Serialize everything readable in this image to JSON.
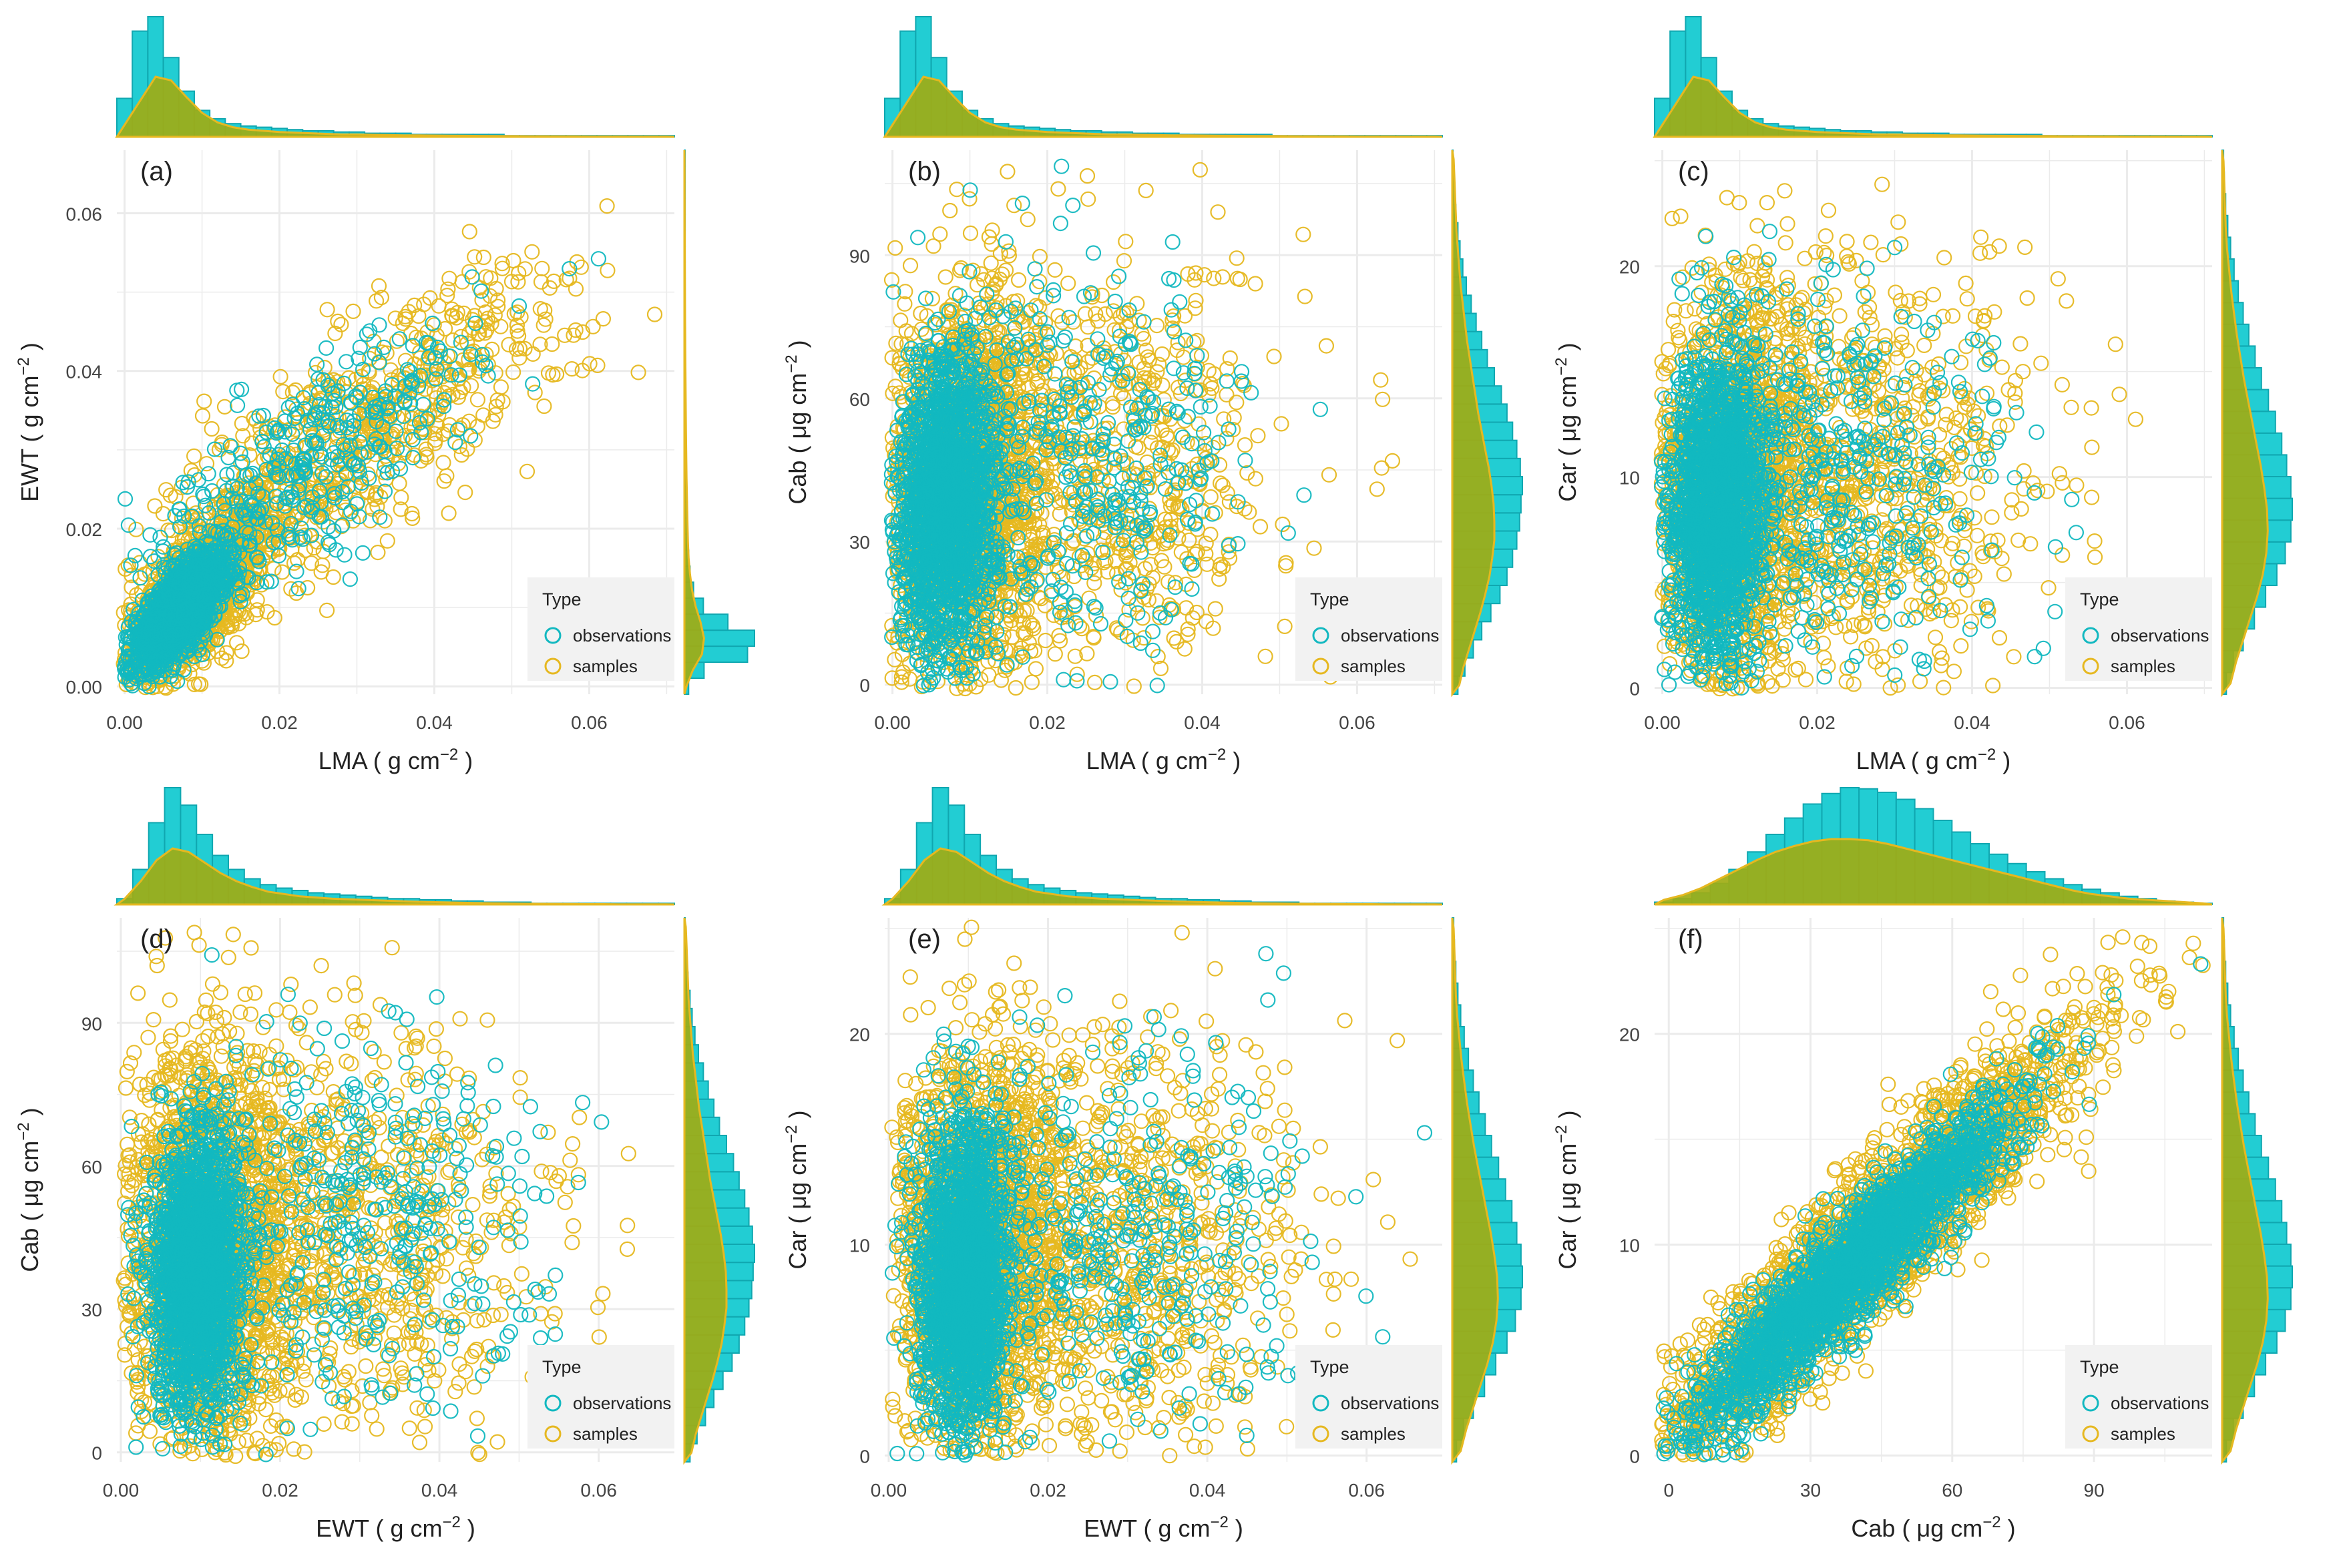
{
  "colors": {
    "observations": "#12b8c0",
    "samples": "#e6b820",
    "hist_obs_fill": "#22cdd3",
    "hist_obs_stroke": "#10a7b0",
    "density_fill": "#a0ad14",
    "density_line": "#e6b820",
    "panel_bg": "#ffffff",
    "grid": "#ebebeb",
    "legend_bg": "#f2f2f2",
    "text": "#222222",
    "axis_text": "#444444"
  },
  "legend": {
    "title": "Type",
    "items": [
      "observations",
      "samples"
    ]
  },
  "chart_data": [
    {
      "panel": "(a)",
      "type": "scatter",
      "xlabel": "LMA",
      "ylabel": "EWT",
      "xunit": "g cm",
      "yunit": "g cm",
      "exp": "−2",
      "xlim": [
        -0.001,
        0.071
      ],
      "ylim": [
        -0.001,
        0.068
      ],
      "xticks": [
        0.0,
        0.02,
        0.04,
        0.06
      ],
      "xtick_labels": [
        "0.00",
        "0.02",
        "0.04",
        "0.06"
      ],
      "yticks": [
        0.0,
        0.02,
        0.04,
        0.06
      ],
      "ytick_labels": [
        "0.00",
        "0.02",
        "0.04",
        "0.06"
      ],
      "clusters": [
        {
          "series": "samples",
          "n": 1300,
          "mx": 0.009,
          "my": 0.011,
          "sx": 0.0045,
          "sy": 0.0055,
          "rho": 0.7
        },
        {
          "series": "samples",
          "n": 700,
          "mx": 0.025,
          "my": 0.028,
          "sx": 0.013,
          "sy": 0.011,
          "rho": 0.8
        },
        {
          "series": "samples",
          "n": 100,
          "mx": 0.045,
          "my": 0.042,
          "sx": 0.012,
          "sy": 0.008,
          "rho": 0.6
        },
        {
          "series": "observations",
          "n": 1700,
          "mx": 0.007,
          "my": 0.0095,
          "sx": 0.003,
          "sy": 0.0035,
          "rho": 0.75
        },
        {
          "series": "observations",
          "n": 400,
          "mx": 0.022,
          "my": 0.026,
          "sx": 0.012,
          "sy": 0.01,
          "rho": 0.8
        }
      ],
      "top_hist": [
        0.32,
        0.88,
        1.0,
        0.66,
        0.38,
        0.22,
        0.15,
        0.11,
        0.09,
        0.08,
        0.07,
        0.06,
        0.05,
        0.05,
        0.04,
        0.04,
        0.03,
        0.03,
        0.03,
        0.02,
        0.02,
        0.02,
        0.02,
        0.02,
        0.02,
        0.01,
        0.01,
        0.01,
        0.01,
        0.01,
        0.01,
        0.01,
        0.01,
        0.01,
        0.01,
        0.01
      ],
      "top_density": [
        0.1,
        0.3,
        0.5,
        0.47,
        0.33,
        0.2,
        0.12,
        0.08,
        0.06,
        0.05,
        0.04,
        0.035,
        0.03,
        0.025,
        0.02,
        0.02,
        0.017,
        0.015,
        0.013,
        0.012,
        0.011,
        0.01,
        0.009,
        0.008,
        0.007,
        0.006,
        0.005,
        0.005,
        0.004,
        0.004,
        0.003,
        0.003,
        0.003,
        0.002,
        0.002,
        0.002
      ],
      "right_hist": [
        0.06,
        0.28,
        0.9,
        1.0,
        0.62,
        0.27,
        0.13,
        0.08,
        0.06,
        0.05,
        0.04,
        0.04,
        0.03,
        0.03,
        0.02,
        0.02,
        0.02,
        0.02,
        0.01,
        0.01,
        0.01,
        0.01,
        0.01,
        0.01,
        0.01,
        0.01,
        0.01,
        0.01,
        0.01,
        0.01,
        0.01,
        0.01,
        0.01,
        0.01
      ],
      "right_density": [
        0.03,
        0.12,
        0.25,
        0.28,
        0.23,
        0.16,
        0.11,
        0.08,
        0.06,
        0.05,
        0.045,
        0.04,
        0.035,
        0.03,
        0.028,
        0.025,
        0.022,
        0.02,
        0.018,
        0.016,
        0.014,
        0.012,
        0.011,
        0.01,
        0.009,
        0.008,
        0.007,
        0.006,
        0.005,
        0.004,
        0.004,
        0.003,
        0.003,
        0.002
      ]
    },
    {
      "panel": "(b)",
      "type": "scatter",
      "xlabel": "LMA",
      "ylabel": "Cab",
      "xunit": "g cm",
      "yunit": "μg cm",
      "exp": "−2",
      "xlim": [
        -0.001,
        0.071
      ],
      "ylim": [
        -2,
        112
      ],
      "xticks": [
        0.0,
        0.02,
        0.04,
        0.06
      ],
      "xtick_labels": [
        "0.00",
        "0.02",
        "0.04",
        "0.06"
      ],
      "yticks": [
        0,
        30,
        60,
        90
      ],
      "ytick_labels": [
        "0",
        "30",
        "60",
        "90"
      ],
      "clusters": [
        {
          "series": "samples",
          "n": 1600,
          "mx": 0.009,
          "my": 40,
          "sx": 0.005,
          "sy": 21,
          "rho": 0.1
        },
        {
          "series": "samples",
          "n": 800,
          "mx": 0.025,
          "my": 45,
          "sx": 0.012,
          "sy": 22,
          "rho": 0.05
        },
        {
          "series": "observations",
          "n": 1800,
          "mx": 0.007,
          "my": 38,
          "sx": 0.0032,
          "sy": 15,
          "rho": 0.1
        },
        {
          "series": "observations",
          "n": 450,
          "mx": 0.022,
          "my": 46,
          "sx": 0.012,
          "sy": 20,
          "rho": 0.05
        }
      ],
      "top_hist": [
        0.32,
        0.88,
        1.0,
        0.66,
        0.38,
        0.22,
        0.15,
        0.11,
        0.09,
        0.08,
        0.07,
        0.06,
        0.05,
        0.05,
        0.04,
        0.04,
        0.03,
        0.03,
        0.03,
        0.02,
        0.02,
        0.02,
        0.02,
        0.02,
        0.02,
        0.01,
        0.01,
        0.01,
        0.01,
        0.01,
        0.01,
        0.01,
        0.01,
        0.01,
        0.01,
        0.01
      ],
      "top_density": [
        0.1,
        0.3,
        0.5,
        0.47,
        0.33,
        0.2,
        0.12,
        0.08,
        0.06,
        0.05,
        0.04,
        0.035,
        0.03,
        0.025,
        0.02,
        0.02,
        0.017,
        0.015,
        0.013,
        0.012,
        0.011,
        0.01,
        0.009,
        0.008,
        0.007,
        0.006,
        0.005,
        0.005,
        0.004,
        0.004,
        0.003,
        0.003,
        0.003,
        0.002,
        0.002,
        0.002
      ],
      "right_hist": [
        0.08,
        0.18,
        0.3,
        0.42,
        0.55,
        0.68,
        0.78,
        0.86,
        0.92,
        0.96,
        0.98,
        1.0,
        0.97,
        0.92,
        0.86,
        0.78,
        0.7,
        0.6,
        0.5,
        0.42,
        0.34,
        0.27,
        0.2,
        0.15,
        0.11,
        0.08,
        0.05,
        0.03,
        0.02,
        0.01
      ],
      "right_density": [
        0.1,
        0.16,
        0.24,
        0.32,
        0.4,
        0.47,
        0.53,
        0.57,
        0.6,
        0.6,
        0.59,
        0.56,
        0.52,
        0.47,
        0.42,
        0.37,
        0.33,
        0.29,
        0.25,
        0.21,
        0.18,
        0.15,
        0.12,
        0.1,
        0.08,
        0.06,
        0.05,
        0.04,
        0.03,
        0.02
      ]
    },
    {
      "panel": "(c)",
      "type": "scatter",
      "xlabel": "LMA",
      "ylabel": "Car",
      "xunit": "g cm",
      "yunit": "μg cm",
      "exp": "−2",
      "xlim": [
        -0.001,
        0.071
      ],
      "ylim": [
        -0.3,
        25.5
      ],
      "xticks": [
        0.0,
        0.02,
        0.04,
        0.06
      ],
      "xtick_labels": [
        "0.00",
        "0.02",
        "0.04",
        "0.06"
      ],
      "yticks": [
        0,
        10,
        20
      ],
      "ytick_labels": [
        "0",
        "10",
        "20"
      ],
      "clusters": [
        {
          "series": "samples",
          "n": 1600,
          "mx": 0.009,
          "my": 9,
          "sx": 0.005,
          "sy": 4.8,
          "rho": 0.1
        },
        {
          "series": "samples",
          "n": 800,
          "mx": 0.025,
          "my": 10,
          "sx": 0.012,
          "sy": 5,
          "rho": 0.05
        },
        {
          "series": "observations",
          "n": 1800,
          "mx": 0.007,
          "my": 8.5,
          "sx": 0.0032,
          "sy": 3.6,
          "rho": 0.1
        },
        {
          "series": "observations",
          "n": 450,
          "mx": 0.022,
          "my": 10,
          "sx": 0.012,
          "sy": 4.6,
          "rho": 0.05
        }
      ],
      "top_hist": [
        0.32,
        0.88,
        1.0,
        0.66,
        0.38,
        0.22,
        0.15,
        0.11,
        0.09,
        0.08,
        0.07,
        0.06,
        0.05,
        0.05,
        0.04,
        0.04,
        0.03,
        0.03,
        0.03,
        0.02,
        0.02,
        0.02,
        0.02,
        0.02,
        0.02,
        0.01,
        0.01,
        0.01,
        0.01,
        0.01,
        0.01,
        0.01,
        0.01,
        0.01,
        0.01,
        0.01
      ],
      "top_density": [
        0.1,
        0.3,
        0.5,
        0.47,
        0.33,
        0.2,
        0.12,
        0.08,
        0.06,
        0.05,
        0.04,
        0.035,
        0.03,
        0.025,
        0.02,
        0.02,
        0.017,
        0.015,
        0.013,
        0.012,
        0.011,
        0.01,
        0.009,
        0.008,
        0.007,
        0.006,
        0.005,
        0.005,
        0.004,
        0.004,
        0.003,
        0.003,
        0.003,
        0.002,
        0.002,
        0.002
      ],
      "right_hist": [
        0.06,
        0.16,
        0.3,
        0.46,
        0.62,
        0.78,
        0.9,
        0.98,
        1.0,
        0.98,
        0.92,
        0.85,
        0.76,
        0.66,
        0.56,
        0.47,
        0.38,
        0.3,
        0.23,
        0.17,
        0.12,
        0.08,
        0.05,
        0.03,
        0.02
      ],
      "right_density": [
        0.12,
        0.2,
        0.3,
        0.4,
        0.5,
        0.58,
        0.63,
        0.65,
        0.64,
        0.6,
        0.55,
        0.49,
        0.43,
        0.37,
        0.31,
        0.26,
        0.21,
        0.17,
        0.13,
        0.1,
        0.07,
        0.05,
        0.04,
        0.03,
        0.02
      ]
    },
    {
      "panel": "(d)",
      "type": "scatter",
      "xlabel": "EWT",
      "ylabel": "Cab",
      "xunit": "g cm",
      "yunit": "μg cm",
      "exp": "−2",
      "xlim": [
        -0.0005,
        0.0695
      ],
      "ylim": [
        -2,
        112
      ],
      "xticks": [
        0.0,
        0.02,
        0.04,
        0.06
      ],
      "xtick_labels": [
        "0.00",
        "0.02",
        "0.04",
        "0.06"
      ],
      "yticks": [
        0,
        30,
        60,
        90
      ],
      "ytick_labels": [
        "0",
        "30",
        "60",
        "90"
      ],
      "clusters": [
        {
          "series": "samples",
          "n": 1700,
          "mx": 0.011,
          "my": 42,
          "sx": 0.0055,
          "sy": 22,
          "rho": 0.05
        },
        {
          "series": "samples",
          "n": 700,
          "mx": 0.03,
          "my": 45,
          "sx": 0.012,
          "sy": 22,
          "rho": 0.0
        },
        {
          "series": "observations",
          "n": 1900,
          "mx": 0.0095,
          "my": 38,
          "sx": 0.0028,
          "sy": 15,
          "rho": 0.1
        },
        {
          "series": "observations",
          "n": 400,
          "mx": 0.028,
          "my": 45,
          "sx": 0.012,
          "sy": 20,
          "rho": 0.0
        }
      ],
      "top_hist": [
        0.05,
        0.3,
        0.7,
        1.0,
        0.85,
        0.6,
        0.42,
        0.3,
        0.22,
        0.17,
        0.14,
        0.12,
        0.1,
        0.09,
        0.08,
        0.07,
        0.06,
        0.05,
        0.05,
        0.04,
        0.04,
        0.03,
        0.03,
        0.02,
        0.02,
        0.02,
        0.01,
        0.01,
        0.01,
        0.01,
        0.01,
        0.01,
        0.01,
        0.01,
        0.01
      ],
      "top_density": [
        0.05,
        0.2,
        0.38,
        0.48,
        0.45,
        0.36,
        0.27,
        0.2,
        0.15,
        0.11,
        0.09,
        0.07,
        0.06,
        0.05,
        0.045,
        0.04,
        0.035,
        0.03,
        0.025,
        0.022,
        0.019,
        0.016,
        0.013,
        0.011,
        0.009,
        0.007,
        0.006,
        0.005,
        0.004,
        0.003,
        0.003,
        0.002,
        0.002,
        0.002,
        0.001
      ],
      "right_hist": [
        0.08,
        0.18,
        0.3,
        0.42,
        0.55,
        0.68,
        0.78,
        0.86,
        0.92,
        0.96,
        0.98,
        1.0,
        0.97,
        0.92,
        0.86,
        0.78,
        0.7,
        0.6,
        0.5,
        0.42,
        0.34,
        0.27,
        0.2,
        0.15,
        0.11,
        0.08,
        0.05,
        0.03,
        0.02,
        0.01
      ],
      "right_density": [
        0.1,
        0.16,
        0.24,
        0.32,
        0.4,
        0.47,
        0.53,
        0.57,
        0.6,
        0.6,
        0.59,
        0.56,
        0.52,
        0.47,
        0.42,
        0.37,
        0.33,
        0.29,
        0.25,
        0.21,
        0.18,
        0.15,
        0.12,
        0.1,
        0.08,
        0.06,
        0.05,
        0.04,
        0.03,
        0.02
      ]
    },
    {
      "panel": "(e)",
      "type": "scatter",
      "xlabel": "EWT",
      "ylabel": "Car",
      "xunit": "g cm",
      "yunit": "μg cm",
      "exp": "−2",
      "xlim": [
        -0.0005,
        0.0695
      ],
      "ylim": [
        -0.3,
        25.5
      ],
      "xticks": [
        0.0,
        0.02,
        0.04,
        0.06
      ],
      "xtick_labels": [
        "0.00",
        "0.02",
        "0.04",
        "0.06"
      ],
      "yticks": [
        0,
        10,
        20
      ],
      "ytick_labels": [
        "0",
        "10",
        "20"
      ],
      "clusters": [
        {
          "series": "samples",
          "n": 1700,
          "mx": 0.011,
          "my": 9.5,
          "sx": 0.0055,
          "sy": 5,
          "rho": 0.05
        },
        {
          "series": "samples",
          "n": 700,
          "mx": 0.03,
          "my": 10,
          "sx": 0.012,
          "sy": 5,
          "rho": 0.0
        },
        {
          "series": "observations",
          "n": 1900,
          "mx": 0.0095,
          "my": 8.5,
          "sx": 0.0028,
          "sy": 3.6,
          "rho": 0.1
        },
        {
          "series": "observations",
          "n": 400,
          "mx": 0.028,
          "my": 10,
          "sx": 0.012,
          "sy": 4.6,
          "rho": 0.0
        }
      ],
      "top_hist": [
        0.05,
        0.3,
        0.7,
        1.0,
        0.85,
        0.6,
        0.42,
        0.3,
        0.22,
        0.17,
        0.14,
        0.12,
        0.1,
        0.09,
        0.08,
        0.07,
        0.06,
        0.05,
        0.05,
        0.04,
        0.04,
        0.03,
        0.03,
        0.02,
        0.02,
        0.02,
        0.01,
        0.01,
        0.01,
        0.01,
        0.01,
        0.01,
        0.01,
        0.01,
        0.01
      ],
      "top_density": [
        0.05,
        0.2,
        0.38,
        0.48,
        0.45,
        0.36,
        0.27,
        0.2,
        0.15,
        0.11,
        0.09,
        0.07,
        0.06,
        0.05,
        0.045,
        0.04,
        0.035,
        0.03,
        0.025,
        0.022,
        0.019,
        0.016,
        0.013,
        0.011,
        0.009,
        0.007,
        0.006,
        0.005,
        0.004,
        0.003,
        0.003,
        0.002,
        0.002,
        0.002,
        0.001
      ],
      "right_hist": [
        0.06,
        0.16,
        0.3,
        0.46,
        0.62,
        0.78,
        0.9,
        0.98,
        1.0,
        0.98,
        0.92,
        0.85,
        0.76,
        0.66,
        0.56,
        0.47,
        0.38,
        0.3,
        0.23,
        0.17,
        0.12,
        0.08,
        0.05,
        0.03,
        0.02
      ],
      "right_density": [
        0.12,
        0.2,
        0.3,
        0.4,
        0.5,
        0.58,
        0.63,
        0.65,
        0.64,
        0.6,
        0.55,
        0.49,
        0.43,
        0.37,
        0.31,
        0.26,
        0.21,
        0.17,
        0.13,
        0.1,
        0.07,
        0.05,
        0.04,
        0.03,
        0.02
      ]
    },
    {
      "panel": "(f)",
      "type": "scatter",
      "xlabel": "Cab",
      "ylabel": "Car",
      "xunit": "μg cm",
      "yunit": "μg cm",
      "exp": "−2",
      "xlim": [
        -3,
        115
      ],
      "ylim": [
        -0.3,
        25.5
      ],
      "xticks": [
        0,
        30,
        60,
        90
      ],
      "xtick_labels": [
        "0",
        "30",
        "60",
        "90"
      ],
      "yticks": [
        0,
        10,
        20
      ],
      "ytick_labels": [
        "0",
        "10",
        "20"
      ],
      "clusters": [
        {
          "series": "samples",
          "n": 2400,
          "mx": 42,
          "my": 9.8,
          "sx": 23,
          "sy": 5.2,
          "rho": 0.93
        },
        {
          "series": "observations",
          "n": 2200,
          "mx": 38,
          "my": 8.8,
          "sx": 18,
          "sy": 4.2,
          "rho": 0.94
        }
      ],
      "top_hist": [
        0.02,
        0.05,
        0.1,
        0.18,
        0.3,
        0.45,
        0.6,
        0.74,
        0.86,
        0.95,
        1.0,
        0.99,
        0.96,
        0.9,
        0.82,
        0.72,
        0.62,
        0.52,
        0.43,
        0.35,
        0.28,
        0.22,
        0.17,
        0.13,
        0.1,
        0.07,
        0.05,
        0.03,
        0.02,
        0.01
      ],
      "top_density": [
        0.04,
        0.08,
        0.14,
        0.22,
        0.3,
        0.38,
        0.45,
        0.5,
        0.54,
        0.56,
        0.56,
        0.55,
        0.52,
        0.48,
        0.44,
        0.4,
        0.36,
        0.32,
        0.28,
        0.24,
        0.2,
        0.16,
        0.12,
        0.09,
        0.07,
        0.05,
        0.04,
        0.03,
        0.02,
        0.01
      ],
      "right_hist": [
        0.06,
        0.16,
        0.3,
        0.46,
        0.62,
        0.78,
        0.9,
        0.98,
        1.0,
        0.98,
        0.92,
        0.85,
        0.76,
        0.66,
        0.56,
        0.47,
        0.38,
        0.3,
        0.23,
        0.17,
        0.12,
        0.08,
        0.05,
        0.03,
        0.02
      ],
      "right_density": [
        0.12,
        0.2,
        0.3,
        0.4,
        0.5,
        0.58,
        0.63,
        0.65,
        0.64,
        0.6,
        0.55,
        0.49,
        0.43,
        0.37,
        0.31,
        0.26,
        0.21,
        0.17,
        0.13,
        0.1,
        0.07,
        0.05,
        0.04,
        0.03,
        0.02
      ]
    }
  ]
}
